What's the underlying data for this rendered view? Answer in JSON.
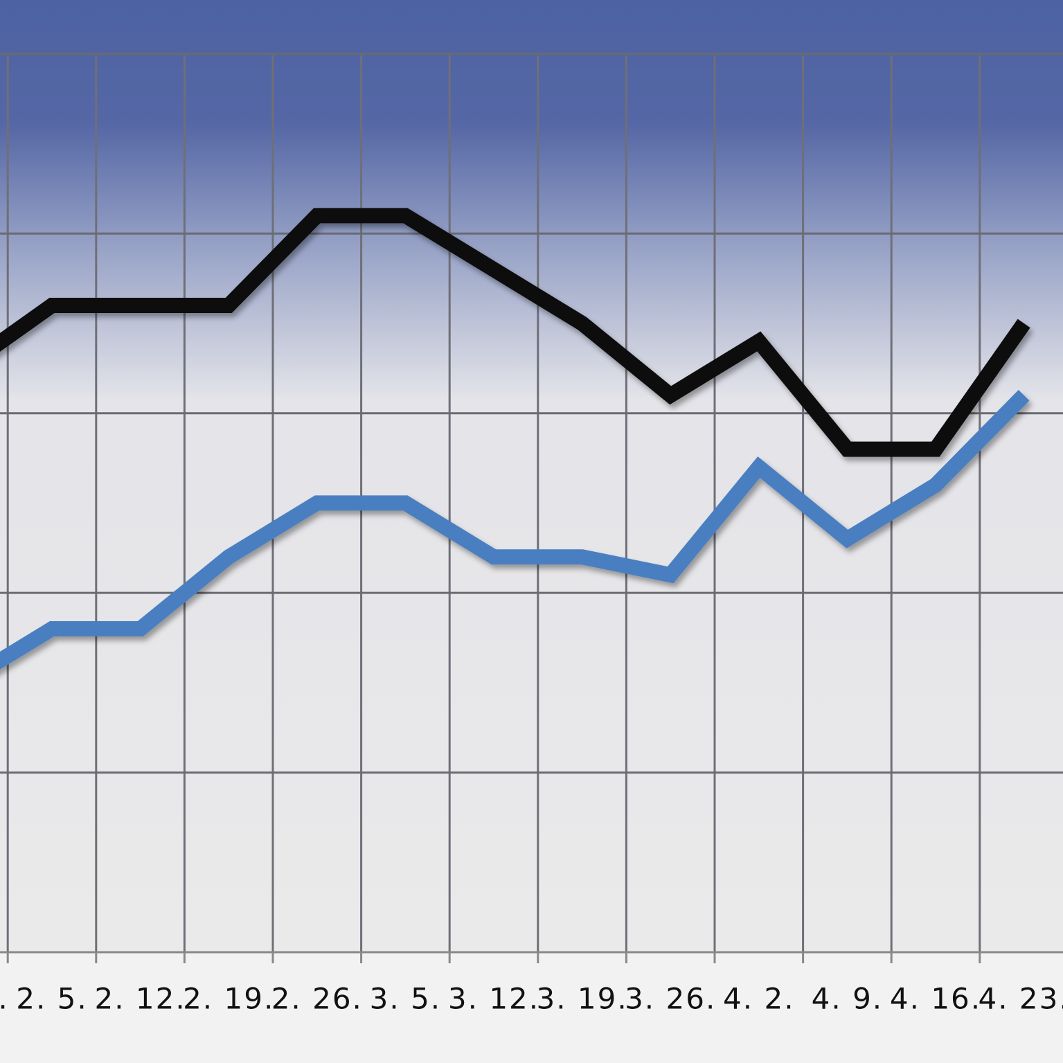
{
  "chart_data": {
    "type": "line",
    "categories": [
      ".",
      "2. 5.",
      "2. 12.",
      "2. 19.",
      "2. 26.",
      "3. 5.",
      "3. 12.",
      "3. 19.",
      "3. 26.",
      "4. 2.",
      "4. 9.",
      "4. 16.",
      "4. 23."
    ],
    "series": [
      {
        "color": "#0a0a0a",
        "values": [
          3.25,
          3.6,
          3.6,
          3.6,
          4.1,
          4.1,
          3.8,
          3.5,
          3.1,
          3.4,
          2.8,
          2.8,
          3.5
        ]
      },
      {
        "color": "#4a7fc0",
        "values": [
          1.5,
          1.8,
          1.8,
          2.2,
          2.5,
          2.5,
          2.2,
          2.2,
          2.1,
          2.7,
          2.3,
          2.6,
          3.1
        ]
      }
    ],
    "ylim": [
      0,
      5.3
    ],
    "yticks": [
      0,
      1,
      2,
      3,
      4,
      5
    ],
    "ytick_labels_shown": false,
    "grid": true
  }
}
